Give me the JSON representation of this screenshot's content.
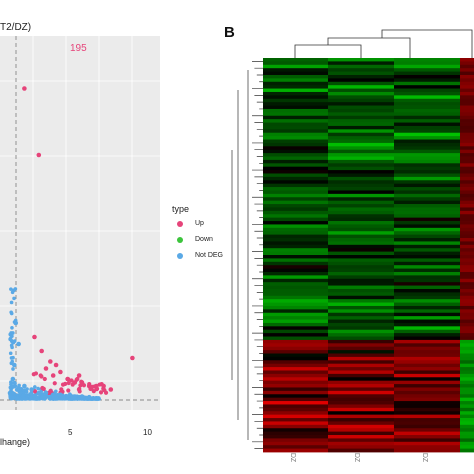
{
  "panel_a": {
    "title_fragment": "T2/DZ)",
    "up_count": "195",
    "x_label_fragment": "lhange)",
    "x_ticks": [
      "5",
      "10"
    ],
    "legend": {
      "title": "type",
      "entries": [
        {
          "label": "Up",
          "color": "#e6447a"
        },
        {
          "label": "Down",
          "color": "#3cc43c"
        },
        {
          "label": "Not DEG",
          "color": "#5aa9e6"
        }
      ]
    }
  },
  "panel_b": {
    "label": "B",
    "column_labels": [
      "DZ",
      "DZ",
      "DZ",
      "T2"
    ]
  },
  "chart_data": {
    "type": "scatter",
    "title": "",
    "xlabel": "",
    "ylabel": "",
    "series": [
      {
        "name": "Up",
        "points": [
          [
            8.5,
            12
          ],
          [
            2.0,
            70
          ],
          [
            1.0,
            89
          ],
          [
            1.7,
            18
          ],
          [
            2.2,
            14
          ],
          [
            2.5,
            9
          ],
          [
            3.0,
            7
          ],
          [
            3.5,
            8
          ],
          [
            4.0,
            6
          ],
          [
            4.5,
            5
          ],
          [
            5.0,
            5
          ],
          [
            5.5,
            4
          ],
          [
            6.0,
            4
          ],
          [
            6.5,
            4
          ],
          [
            7.0,
            3
          ],
          [
            3.2,
            10
          ],
          [
            4.8,
            7
          ],
          [
            2.8,
            11
          ]
        ]
      },
      {
        "name": "Not DEG",
        "points": [
          [
            0.0,
            2
          ],
          [
            0.5,
            3
          ],
          [
            1.0,
            4
          ],
          [
            1.5,
            3
          ],
          [
            2.0,
            2
          ],
          [
            2.5,
            2
          ],
          [
            3.0,
            1.5
          ],
          [
            3.5,
            1.5
          ],
          [
            4.0,
            1
          ],
          [
            4.5,
            1
          ],
          [
            5.0,
            1
          ],
          [
            5.5,
            0.8
          ],
          [
            0.3,
            10
          ],
          [
            0.6,
            16
          ],
          [
            0.4,
            22
          ],
          [
            0.2,
            6
          ]
        ]
      }
    ]
  }
}
